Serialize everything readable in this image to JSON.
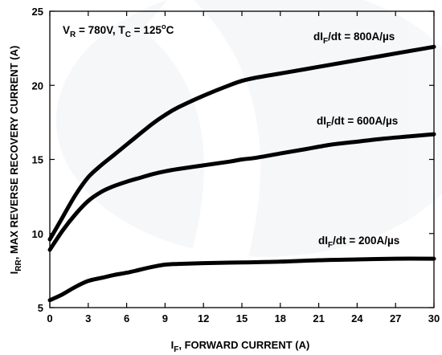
{
  "chart_data": {
    "type": "line",
    "xlim": [
      0,
      30
    ],
    "ylim": [
      5,
      25
    ],
    "x_ticks": [
      0,
      3,
      6,
      9,
      12,
      15,
      18,
      21,
      24,
      27,
      30
    ],
    "y_ticks": [
      5,
      10,
      15,
      20,
      25
    ],
    "grid": false,
    "xlabel": {
      "main": "I",
      "sub": "F",
      "rest": ", FORWARD CURRENT (A)"
    },
    "ylabel": {
      "main": "I",
      "sub": "RR",
      "rest": ", MAX REVERSE RECOVERY CURRENT (A)"
    },
    "conditions": {
      "v": "V",
      "v_sub": "R",
      "v_rest": " = 780V, T",
      "t_sub": "C",
      "t_rest": " = 125",
      "deg": "o",
      "unit": "C"
    },
    "series": [
      {
        "label_pre": "dI",
        "label_sub": "F",
        "label_post": "/dt = 800A/µs",
        "x": [
          0,
          1,
          2,
          3,
          4,
          5,
          6,
          7,
          8,
          9,
          10,
          12,
          14,
          15,
          16,
          18,
          20,
          22,
          24,
          26,
          28,
          30
        ],
        "y": [
          9.6,
          11.1,
          12.6,
          13.8,
          14.6,
          15.3,
          16.0,
          16.7,
          17.4,
          18.0,
          18.5,
          19.3,
          20.0,
          20.3,
          20.5,
          20.8,
          21.1,
          21.4,
          21.7,
          22.0,
          22.3,
          22.6
        ]
      },
      {
        "label_pre": "dI",
        "label_sub": "F",
        "label_post": "/dt = 600A/µs",
        "x": [
          0,
          1,
          2,
          3,
          4,
          5,
          6,
          7,
          8,
          9,
          10,
          12,
          14,
          15,
          16,
          18,
          20,
          22,
          24,
          26,
          28,
          30
        ],
        "y": [
          8.9,
          10.2,
          11.3,
          12.2,
          12.8,
          13.2,
          13.5,
          13.75,
          14.0,
          14.2,
          14.35,
          14.6,
          14.85,
          15.0,
          15.1,
          15.4,
          15.7,
          16.0,
          16.2,
          16.4,
          16.55,
          16.7
        ]
      },
      {
        "label_pre": "dI",
        "label_sub": "F",
        "label_post": "/dt = 200A/µs",
        "x": [
          0,
          1,
          2,
          3,
          4,
          5,
          6,
          7,
          8,
          9,
          10,
          12,
          15,
          18,
          21,
          24,
          27,
          30
        ],
        "y": [
          5.5,
          5.9,
          6.4,
          6.8,
          7.0,
          7.2,
          7.35,
          7.55,
          7.75,
          7.9,
          7.95,
          8.0,
          8.05,
          8.1,
          8.2,
          8.25,
          8.3,
          8.3
        ]
      }
    ]
  }
}
